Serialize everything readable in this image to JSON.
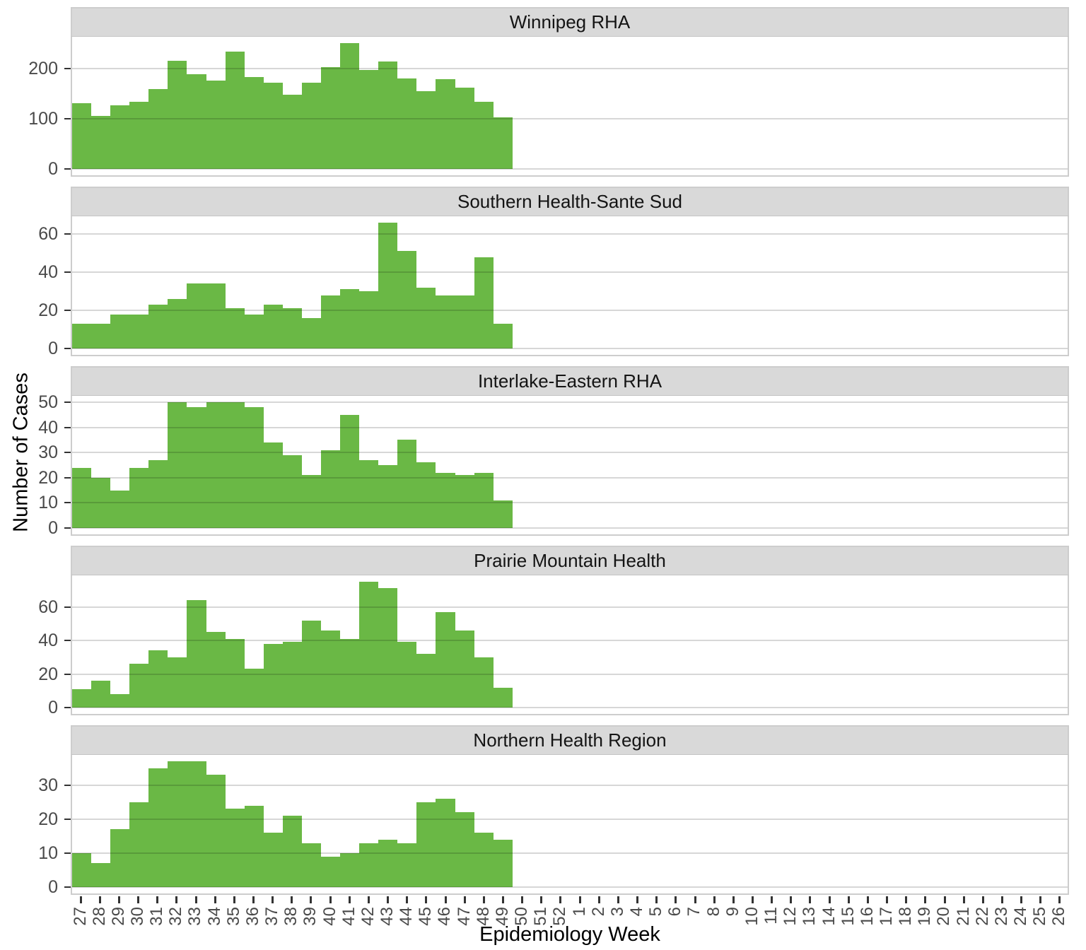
{
  "chart_data": {
    "type": "bar",
    "title": "",
    "xlabel": "Epidemiology Week",
    "ylabel": "Number of Cases",
    "facet_layout": "rows",
    "grid": true,
    "bar_color": "#6ab845",
    "strip_bg": "#d9d9d9",
    "x": [
      27,
      28,
      29,
      30,
      31,
      32,
      33,
      34,
      35,
      36,
      37,
      38,
      39,
      40,
      41,
      42,
      43,
      44,
      45,
      46,
      47,
      48,
      49
    ],
    "x_axis_ticks": [
      "27",
      "28",
      "29",
      "30",
      "31",
      "32",
      "33",
      "34",
      "35",
      "36",
      "37",
      "38",
      "39",
      "40",
      "41",
      "42",
      "43",
      "44",
      "45",
      "46",
      "47",
      "48",
      "49",
      "50",
      "51",
      "52",
      "1",
      "2",
      "3",
      "4",
      "5",
      "6",
      "7",
      "8",
      "9",
      "10",
      "11",
      "12",
      "13",
      "14",
      "15",
      "16",
      "17",
      "18",
      "19",
      "20",
      "21",
      "22",
      "23",
      "24",
      "25",
      "26"
    ],
    "series": [
      {
        "name": "Winnipeg RHA",
        "yticks": [
          0,
          100,
          200
        ],
        "ylim": [
          0,
          263
        ],
        "values": [
          130,
          105,
          127,
          133,
          158,
          215,
          188,
          175,
          233,
          182,
          171,
          147,
          172,
          202,
          250,
          197,
          214,
          180,
          154,
          179,
          162,
          134,
          102
        ]
      },
      {
        "name": "Southern Health-Sante Sud",
        "yticks": [
          0,
          20,
          40,
          60
        ],
        "ylim": [
          0,
          69
        ],
        "values": [
          13,
          13,
          18,
          18,
          23,
          26,
          34,
          34,
          21,
          18,
          23,
          21,
          16,
          28,
          31,
          30,
          66,
          51,
          32,
          28,
          28,
          48,
          13
        ]
      },
      {
        "name": "Interlake-Eastern RHA",
        "yticks": [
          0,
          10,
          20,
          30,
          40,
          50
        ],
        "ylim": [
          0,
          52.5
        ],
        "values": [
          24,
          20,
          15,
          24,
          27,
          50,
          48,
          50,
          50,
          48,
          34,
          29,
          21,
          31,
          45,
          27,
          25,
          35,
          26,
          22,
          21,
          22,
          11
        ]
      },
      {
        "name": "Prairie Mountain Health",
        "yticks": [
          0,
          20,
          40,
          60
        ],
        "ylim": [
          0,
          78.8
        ],
        "values": [
          11,
          16,
          8,
          26,
          34,
          30,
          64,
          45,
          41,
          23,
          38,
          39,
          52,
          46,
          41,
          75,
          71,
          39,
          32,
          57,
          46,
          30,
          12
        ]
      },
      {
        "name": "Northern Health Region",
        "yticks": [
          0,
          10,
          20,
          30
        ],
        "ylim": [
          0,
          38.9
        ],
        "values": [
          10,
          7,
          17,
          25,
          35,
          37,
          37,
          33,
          23,
          24,
          16,
          21,
          13,
          9,
          10,
          13,
          14,
          13,
          25,
          26,
          22,
          16,
          14
        ]
      }
    ]
  }
}
